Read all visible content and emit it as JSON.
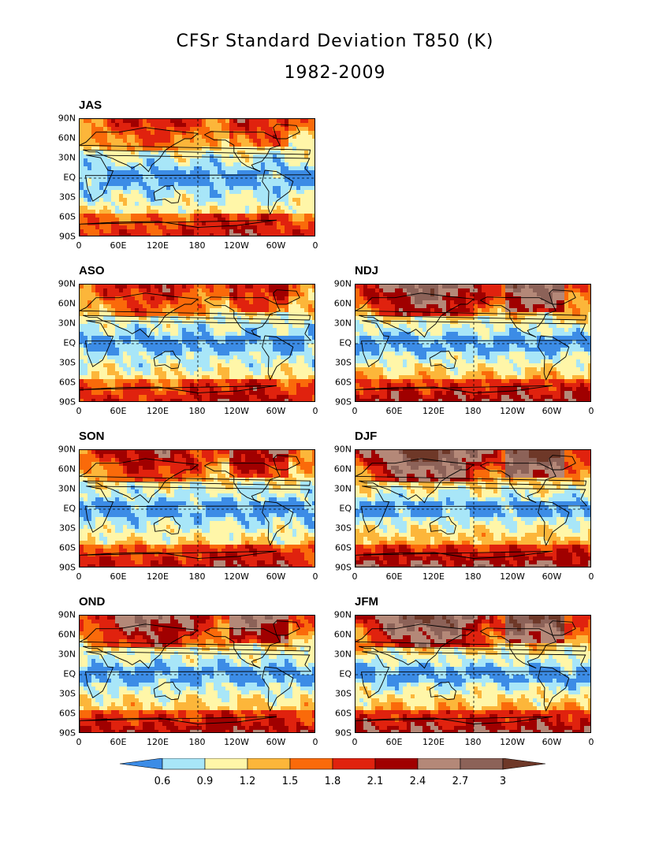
{
  "title": {
    "line1": "CFSr Standard Deviation T850 (K)",
    "line2": "1982-2009"
  },
  "axes": {
    "y_ticks": [
      "90N",
      "60N",
      "30N",
      "EQ",
      "30S",
      "60S",
      "90S"
    ],
    "x_ticks": [
      "0",
      "60E",
      "120E",
      "180",
      "120W",
      "60W",
      "0"
    ]
  },
  "panels": [
    {
      "id": "JAS",
      "label": "JAS",
      "col": 0,
      "row": 0,
      "intensity": 0.45
    },
    {
      "id": "ASO",
      "label": "ASO",
      "col": 0,
      "row": 1,
      "intensity": 0.5
    },
    {
      "id": "NDJ",
      "label": "NDJ",
      "col": 1,
      "row": 1,
      "intensity": 0.85
    },
    {
      "id": "SON",
      "label": "SON",
      "col": 0,
      "row": 2,
      "intensity": 0.6
    },
    {
      "id": "DJF",
      "label": "DJF",
      "col": 1,
      "row": 2,
      "intensity": 1.0
    },
    {
      "id": "OND",
      "label": "OND",
      "col": 0,
      "row": 3,
      "intensity": 0.75
    },
    {
      "id": "JFM",
      "label": "JFM",
      "col": 1,
      "row": 3,
      "intensity": 0.95
    }
  ],
  "colorbar": {
    "levels": [
      "0.6",
      "0.9",
      "1.2",
      "1.5",
      "1.8",
      "2.1",
      "2.4",
      "2.7",
      "3"
    ],
    "colors": [
      "#3c8ce6",
      "#a8e6f8",
      "#fff6a8",
      "#fcb63a",
      "#fa6a0a",
      "#e0220e",
      "#a00000",
      "#b48878",
      "#8c6258",
      "#6e3828"
    ]
  }
}
